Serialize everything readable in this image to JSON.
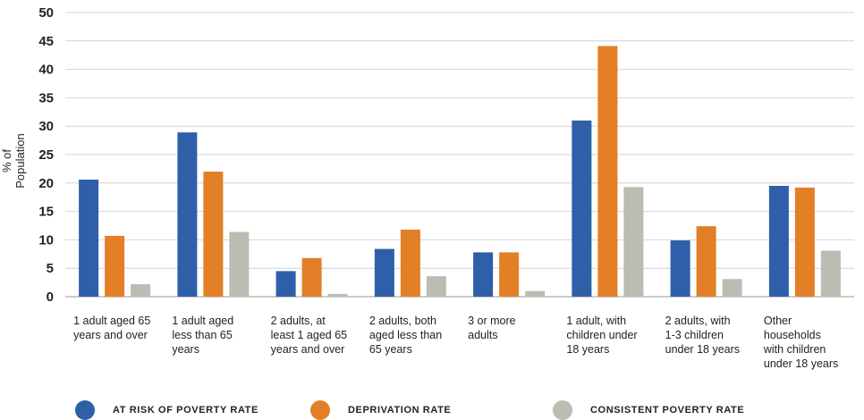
{
  "chart_data": {
    "type": "bar",
    "title": "",
    "xlabel": "",
    "ylabel": "% of Population",
    "ylim": [
      0,
      50
    ],
    "yticks": [
      0,
      5,
      10,
      15,
      20,
      25,
      30,
      35,
      40,
      45,
      50
    ],
    "grid": true,
    "legend_position": "bottom",
    "categories": [
      "1 adult aged 65\nyears and over",
      "1 adult aged\nless than 65\nyears",
      "2 adults, at\nleast 1 aged 65\nyears and over",
      "2 adults, both\naged less than\n65 years",
      "3 or more\nadults",
      "1 adult, with\nchildren under\n18 years",
      "2 adults, with\n1-3 children\nunder 18 years",
      "Other\nhouseholds\nwith children\nunder 18 years"
    ],
    "series": [
      {
        "name": "AT RISK OF POVERTY RATE",
        "color": "#2f5fa8",
        "values": [
          20.6,
          28.9,
          4.5,
          8.4,
          7.8,
          31.0,
          9.9,
          19.5
        ]
      },
      {
        "name": "DEPRIVATION RATE",
        "color": "#e37f26",
        "values": [
          10.7,
          22.0,
          6.8,
          11.8,
          7.8,
          44.1,
          12.4,
          19.2
        ]
      },
      {
        "name": "CONSISTENT POVERTY RATE",
        "color": "#bcbdb2",
        "values": [
          2.2,
          11.4,
          0.5,
          3.6,
          1.0,
          19.3,
          3.1,
          8.1
        ]
      }
    ]
  }
}
